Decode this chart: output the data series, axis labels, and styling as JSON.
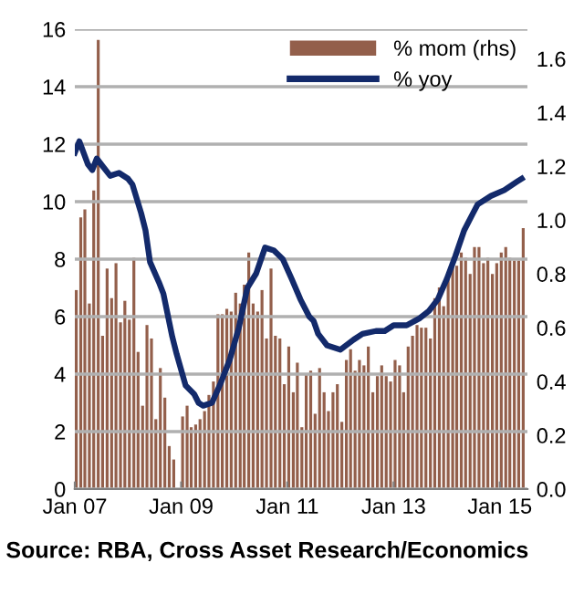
{
  "chart_data": {
    "type": "bar",
    "annotations": [
      "Source: RBA, Cross Asset Research/Economics"
    ],
    "x": [
      "2007-01",
      "2007-02",
      "2007-03",
      "2007-04",
      "2007-05",
      "2007-06",
      "2007-07",
      "2007-08",
      "2007-09",
      "2007-10",
      "2007-11",
      "2007-12",
      "2008-01",
      "2008-02",
      "2008-03",
      "2008-04",
      "2008-05",
      "2008-06",
      "2008-07",
      "2008-08",
      "2008-09",
      "2008-10",
      "2008-11",
      "2008-12",
      "2009-01",
      "2009-02",
      "2009-03",
      "2009-04",
      "2009-05",
      "2009-06",
      "2009-07",
      "2009-08",
      "2009-09",
      "2009-10",
      "2009-11",
      "2009-12",
      "2010-01",
      "2010-02",
      "2010-03",
      "2010-04",
      "2010-05",
      "2010-06",
      "2010-07",
      "2010-08",
      "2010-09",
      "2010-10",
      "2010-11",
      "2010-12",
      "2011-01",
      "2011-02",
      "2011-03",
      "2011-04",
      "2011-05",
      "2011-06",
      "2011-07",
      "2011-08",
      "2011-09",
      "2011-10",
      "2011-11",
      "2011-12",
      "2012-01",
      "2012-02",
      "2012-03",
      "2012-04",
      "2012-05",
      "2012-06",
      "2012-07",
      "2012-08",
      "2012-09",
      "2012-10",
      "2012-11",
      "2012-12",
      "2013-01",
      "2013-02",
      "2013-03",
      "2013-04",
      "2013-05",
      "2013-06",
      "2013-07",
      "2013-08",
      "2013-09",
      "2013-10",
      "2013-11",
      "2013-12",
      "2014-01",
      "2014-02",
      "2014-03",
      "2014-04",
      "2014-05",
      "2014-06",
      "2014-07",
      "2014-08",
      "2014-09",
      "2014-10",
      "2014-11",
      "2014-12",
      "2015-01",
      "2015-02",
      "2015-03",
      "2015-04",
      "2015-05",
      "2015-06"
    ],
    "series": [
      {
        "name": "% mom (rhs)",
        "axis": "y2",
        "color": "#935f4b",
        "values": [
          0.74,
          1.01,
          1.04,
          0.69,
          1.11,
          1.67,
          0.57,
          0.82,
          0.71,
          0.84,
          0.62,
          0.7,
          0.63,
          0.86,
          0.51,
          0.31,
          0.61,
          0.56,
          0.26,
          0.45,
          0.34,
          0.16,
          0.11,
          null,
          0.27,
          0.31,
          0.23,
          0.24,
          0.26,
          0.29,
          0.35,
          0.4,
          0.65,
          0.65,
          0.67,
          0.66,
          0.73,
          0.69,
          0.76,
          0.88,
          0.69,
          0.66,
          0.74,
          0.56,
          0.82,
          0.57,
          0.56,
          0.39,
          0.53,
          0.36,
          0.47,
          0.23,
          0.43,
          0.44,
          0.28,
          0.45,
          0.36,
          0.29,
          0.36,
          0.39,
          0.25,
          0.48,
          0.52,
          0.44,
          0.48,
          0.46,
          0.53,
          0.36,
          0.42,
          0.46,
          0.42,
          0.4,
          0.48,
          0.46,
          0.36,
          0.53,
          0.57,
          0.61,
          0.6,
          0.6,
          0.56,
          0.71,
          0.75,
          0.68,
          0.8,
          0.86,
          0.83,
          0.88,
          0.86,
          0.8,
          0.9,
          0.9,
          0.84,
          0.86,
          0.8,
          0.84,
          0.88,
          0.9,
          0.86,
          0.85,
          0.85,
          0.97
        ]
      },
      {
        "name": "% yoy",
        "type": "line",
        "color": "#132a6b",
        "x": [
          "2007-01",
          "2007-02",
          "2007-04",
          "2007-05",
          "2007-06",
          "2007-07",
          "2007-09",
          "2007-11",
          "2008-01",
          "2008-02",
          "2008-04",
          "2008-05",
          "2008-06",
          "2008-08",
          "2008-09",
          "2008-11",
          "2008-12",
          "2009-02",
          "2009-04",
          "2009-05",
          "2009-06",
          "2009-08",
          "2009-10",
          "2009-12",
          "2010-02",
          "2010-04",
          "2010-06",
          "2010-08",
          "2010-10",
          "2010-12",
          "2011-02",
          "2011-04",
          "2011-06",
          "2011-07",
          "2011-08",
          "2011-10",
          "2012-01",
          "2012-04",
          "2012-06",
          "2012-09",
          "2012-11",
          "2013-01",
          "2013-04",
          "2013-07",
          "2013-09",
          "2013-11",
          "2014-01",
          "2014-03",
          "2014-05",
          "2014-07",
          "2014-08",
          "2014-11",
          "2015-02",
          "2015-05",
          "2015-06"
        ],
        "values": [
          11.7,
          12.1,
          11.3,
          11.1,
          11.5,
          11.3,
          10.9,
          11.0,
          10.8,
          10.6,
          9.6,
          9.0,
          7.9,
          7.2,
          6.8,
          5.3,
          4.7,
          3.6,
          3.3,
          3.0,
          2.9,
          3.0,
          3.7,
          4.5,
          5.6,
          7.0,
          7.5,
          8.4,
          8.3,
          8.0,
          7.3,
          6.6,
          6.0,
          5.85,
          5.4,
          5.0,
          4.85,
          5.2,
          5.4,
          5.5,
          5.5,
          5.7,
          5.7,
          5.95,
          6.2,
          6.6,
          7.3,
          8.1,
          9.0,
          9.6,
          9.9,
          10.2,
          10.4,
          10.7,
          10.8
        ]
      }
    ],
    "xlim": [
      "2007-01-01",
      "2015-07-10"
    ],
    "xticks": [
      {
        "value": "2007-01-01",
        "label": "Jan 07"
      },
      {
        "value": "2009-01-01",
        "label": "Jan 09"
      },
      {
        "value": "2011-01-01",
        "label": "Jan 11"
      },
      {
        "value": "2013-01-01",
        "label": "Jan 13"
      },
      {
        "value": "2015-01-01",
        "label": "Jan 15"
      }
    ],
    "ylim": [
      0,
      16
    ],
    "yticks": [
      0,
      2,
      4,
      6,
      8,
      10,
      12,
      14,
      16
    ],
    "y2lim": [
      0,
      1.71
    ],
    "y2ticks": [
      {
        "value": 0,
        "label": "0.0"
      },
      0.2,
      0.4,
      0.6,
      0.8,
      {
        "value": 1,
        "label": "1.0"
      },
      1.2,
      1.4,
      1.6
    ],
    "grid": "y",
    "legend": "top right"
  }
}
